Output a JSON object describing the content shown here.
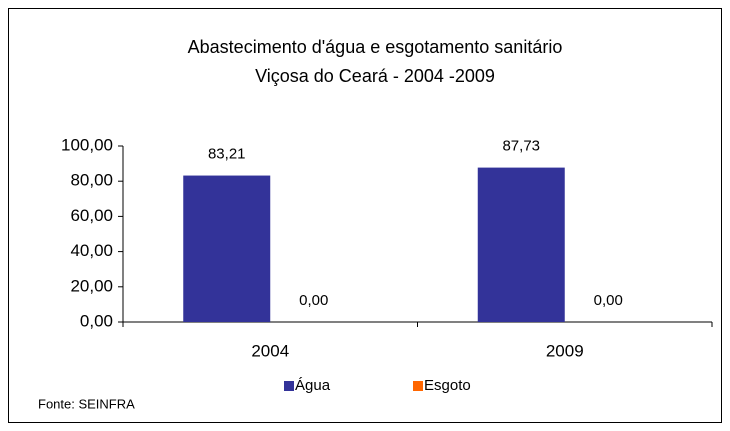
{
  "chart_data": {
    "type": "bar",
    "title": "Abastecimento d'água e esgotamento sanitário",
    "subtitle": "Viçosa do Ceará  - 2004 -2009",
    "categories": [
      "2004",
      "2009"
    ],
    "series": [
      {
        "name": "Água",
        "color": "#333399",
        "values": [
          83.21,
          87.73
        ],
        "value_labels": [
          "83,21",
          "87,73"
        ]
      },
      {
        "name": "Esgoto",
        "color": "#ff6600",
        "values": [
          0,
          0
        ],
        "value_labels": [
          "0,00",
          "0,00"
        ]
      }
    ],
    "ylim": [
      0,
      100
    ],
    "yticks": [
      {
        "value": 0,
        "label": "0,00"
      },
      {
        "value": 20,
        "label": "20,00"
      },
      {
        "value": 40,
        "label": "40,00"
      },
      {
        "value": 60,
        "label": "60,00"
      },
      {
        "value": 80,
        "label": "80,00"
      },
      {
        "value": 100,
        "label": "100,00"
      }
    ],
    "legend": "bottom",
    "grid": false,
    "source": "Fonte: SEINFRA"
  }
}
